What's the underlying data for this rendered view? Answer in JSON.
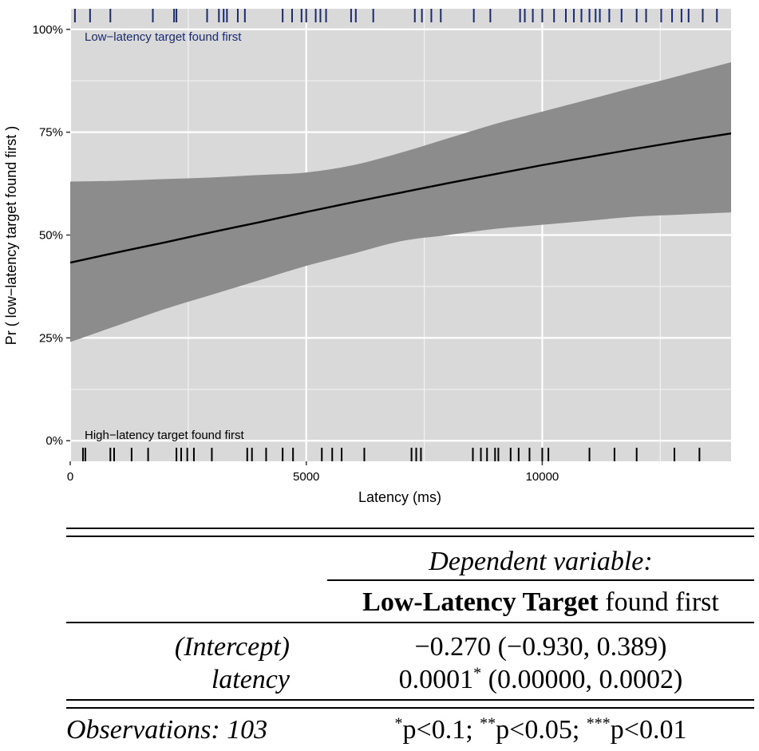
{
  "chart_data": {
    "type": "line",
    "x_label": "Latency (ms)",
    "y_label": "Pr ( low−latency target found first )",
    "xlim": [
      0,
      14000
    ],
    "ylim": [
      -0.05,
      1.05
    ],
    "x_ticks": [
      0,
      5000,
      10000
    ],
    "x_tick_labels": [
      "0",
      "5000",
      "10000"
    ],
    "y_ticks": [
      0,
      0.25,
      0.5,
      0.75,
      1.0
    ],
    "y_tick_labels": [
      "0%",
      "25%",
      "50%",
      "75%",
      "100%"
    ],
    "grid": true,
    "fitted_curve": {
      "x": [
        0,
        1000,
        2000,
        3000,
        4000,
        5000,
        6000,
        7000,
        8000,
        9000,
        10000,
        11000,
        12000,
        13000,
        14000
      ],
      "y": [
        0.433,
        0.458,
        0.482,
        0.507,
        0.531,
        0.556,
        0.58,
        0.603,
        0.626,
        0.648,
        0.67,
        0.69,
        0.71,
        0.729,
        0.747
      ]
    },
    "confidence_band": {
      "x": [
        0,
        1000,
        2000,
        3000,
        4000,
        5000,
        6000,
        7000,
        8000,
        9000,
        10000,
        11000,
        12000,
        13000,
        14000
      ],
      "lower": [
        0.24,
        0.28,
        0.32,
        0.355,
        0.39,
        0.425,
        0.455,
        0.485,
        0.5,
        0.515,
        0.525,
        0.535,
        0.545,
        0.55,
        0.555
      ],
      "upper": [
        0.63,
        0.632,
        0.636,
        0.64,
        0.646,
        0.652,
        0.67,
        0.7,
        0.735,
        0.77,
        0.8,
        0.83,
        0.86,
        0.89,
        0.92
      ]
    },
    "rug_top": {
      "label": "Low−latency target found first",
      "color": "#1a2a6c",
      "x": [
        100,
        420,
        850,
        1750,
        2200,
        2250,
        2900,
        3150,
        3250,
        3320,
        3550,
        3700,
        4500,
        4700,
        4900,
        5000,
        5200,
        5300,
        5420,
        5950,
        6050,
        6420,
        7300,
        7450,
        7650,
        7850,
        8550,
        8900,
        9530,
        9630,
        9800,
        10000,
        10250,
        10500,
        10670,
        10830,
        11000,
        11130,
        11220,
        11420,
        11680,
        12000,
        12200,
        12520,
        12750,
        12950,
        13100,
        13400,
        13700
      ]
    },
    "rug_bottom": {
      "label": "High−latency target found first",
      "color": "#000000",
      "x": [
        270,
        320,
        850,
        930,
        1300,
        1650,
        2250,
        2350,
        2480,
        2620,
        3000,
        3750,
        3850,
        4150,
        4500,
        4720,
        5330,
        5550,
        5750,
        6230,
        7230,
        7330,
        7430,
        8530,
        8700,
        8830,
        9000,
        9070,
        9330,
        9500,
        9730,
        10000,
        10130,
        11000,
        11530,
        12000,
        12800,
        13330
      ]
    }
  },
  "table": {
    "dep_var_header": "Dependent variable:",
    "dep_var_bold": "Low-Latency Target",
    "dep_var_rest": " found first",
    "rows": [
      {
        "name": "(Intercept)",
        "estimate": "−0.270 (−0.930, 0.389)",
        "stars": ""
      },
      {
        "name": "latency",
        "estimate_pre": "0.0001",
        "stars": "*",
        "estimate_post": " (0.00000, 0.0002)"
      }
    ],
    "observations": "Observations: 103",
    "notes": [
      {
        "stars": "*",
        "text": "p<0.1; "
      },
      {
        "stars": "**",
        "text": "p<0.05; "
      },
      {
        "stars": "***",
        "text": "p<0.01"
      }
    ]
  }
}
